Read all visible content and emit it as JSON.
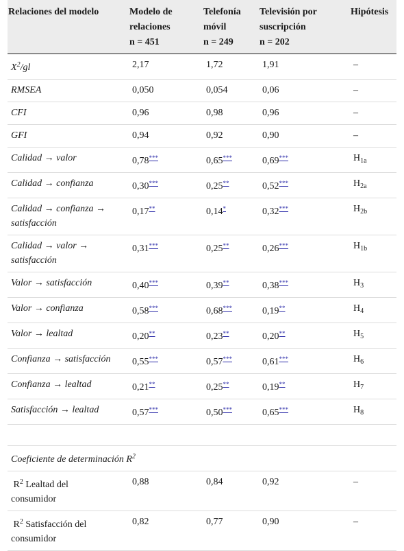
{
  "headers": {
    "col1": "Relaciones del modelo",
    "col2_line1": "Modelo de",
    "col2_line2": "relaciones",
    "col2_n": "n = 451",
    "col3_line1": "Telefonía",
    "col3_line2": "móvil",
    "col3_n": "n = 249",
    "col4_line1": "Televisión por",
    "col4_line2": "suscripción",
    "col4_n": "n = 202",
    "col5": "Hipótesis"
  },
  "fit_rows": [
    {
      "label_main": "X",
      "label_sup": "2",
      "label_rest": "/gl",
      "v1": "2,17",
      "v2": "1,72",
      "v3": "1,91",
      "hyp": "–"
    },
    {
      "label": "RMSEA",
      "v1": "0,050",
      "v2": "0,054",
      "v3": "0,06",
      "hyp": "–"
    },
    {
      "label": "CFI",
      "v1": "0,96",
      "v2": "0,98",
      "v3": "0,96",
      "hyp": "–"
    },
    {
      "label": "GFI",
      "v1": "0,94",
      "v2": "0,92",
      "v3": "0,90",
      "hyp": "–"
    }
  ],
  "path_rows": [
    {
      "label": "Calidad → valor",
      "v1": "0,78",
      "s1": "***",
      "v2": "0,65",
      "s2": "***",
      "v3": "0,69",
      "s3": "***",
      "hyp": "H",
      "hyp_sub": "1a"
    },
    {
      "label": "Calidad → confianza",
      "v1": "0,30",
      "s1": "***",
      "v2": "0,25",
      "s2": "**",
      "v3": "0,52",
      "s3": "***",
      "hyp": "H",
      "hyp_sub": "2a"
    },
    {
      "label_l1": "Calidad → confianza →",
      "label_l2": "satisfacción",
      "v1": "0,17",
      "s1": "**",
      "v2": "0,14",
      "s2": "*",
      "v3": "0,32",
      "s3": "***",
      "hyp": "H",
      "hyp_sub": "2b"
    },
    {
      "label_l1": "Calidad → valor →",
      "label_l2": "satisfacción",
      "v1": "0,31",
      "s1": "***",
      "v2": "0,25",
      "s2": "**",
      "v3": "0,26",
      "s3": "***",
      "hyp": "H",
      "hyp_sub": "1b"
    },
    {
      "label": "Valor → satisfacción",
      "v1": "0,40",
      "s1": "***",
      "v2": "0,39",
      "s2": "**",
      "v3": "0,38",
      "s3": "***",
      "hyp": "H",
      "hyp_sub": "3"
    },
    {
      "label": "Valor → confianza",
      "v1": "0,58",
      "s1": "***",
      "v2": "0,68",
      "s2": "***",
      "v3": "0,19",
      "s3": "**",
      "hyp": "H",
      "hyp_sub": "4"
    },
    {
      "label": "Valor → lealtad",
      "v1": "0,20",
      "s1": "**",
      "v2": "0,23",
      "s2": "**",
      "v3": "0,20",
      "s3": "**",
      "hyp": "H",
      "hyp_sub": "5"
    },
    {
      "label": "Confianza → satisfacción",
      "v1": "0,55",
      "s1": "***",
      "v2": "0,57",
      "s2": "***",
      "v3": "0,61",
      "s3": "***",
      "hyp": "H",
      "hyp_sub": "6"
    },
    {
      "label": "Confianza → lealtad",
      "v1": "0,21",
      "s1": "**",
      "v2": "0,25",
      "s2": "**",
      "v3": "0,19",
      "s3": "**",
      "hyp": "H",
      "hyp_sub": "7"
    },
    {
      "label": "Satisfacción → lealtad",
      "v1": "0,57",
      "s1": "***",
      "v2": "0,50",
      "s2": "***",
      "v3": "0,65",
      "s3": "***",
      "hyp": "H",
      "hyp_sub": "8"
    }
  ],
  "r2_section": {
    "title": "Coeficiente de determinación R",
    "title_sup": "2"
  },
  "r2_rows": [
    {
      "label_pre": "R",
      "label_sup": "2",
      "label_l1": " Lealtad del",
      "label_l2": "consumidor",
      "v1": "0,88",
      "v2": "0,84",
      "v3": "0,92",
      "hyp": "–"
    },
    {
      "label_pre": "R",
      "label_sup": "2",
      "label_l1": " Satisfacción del",
      "label_l2": "consumidor",
      "v1": "0,82",
      "v2": "0,77",
      "v3": "0,90",
      "hyp": "–"
    }
  ]
}
